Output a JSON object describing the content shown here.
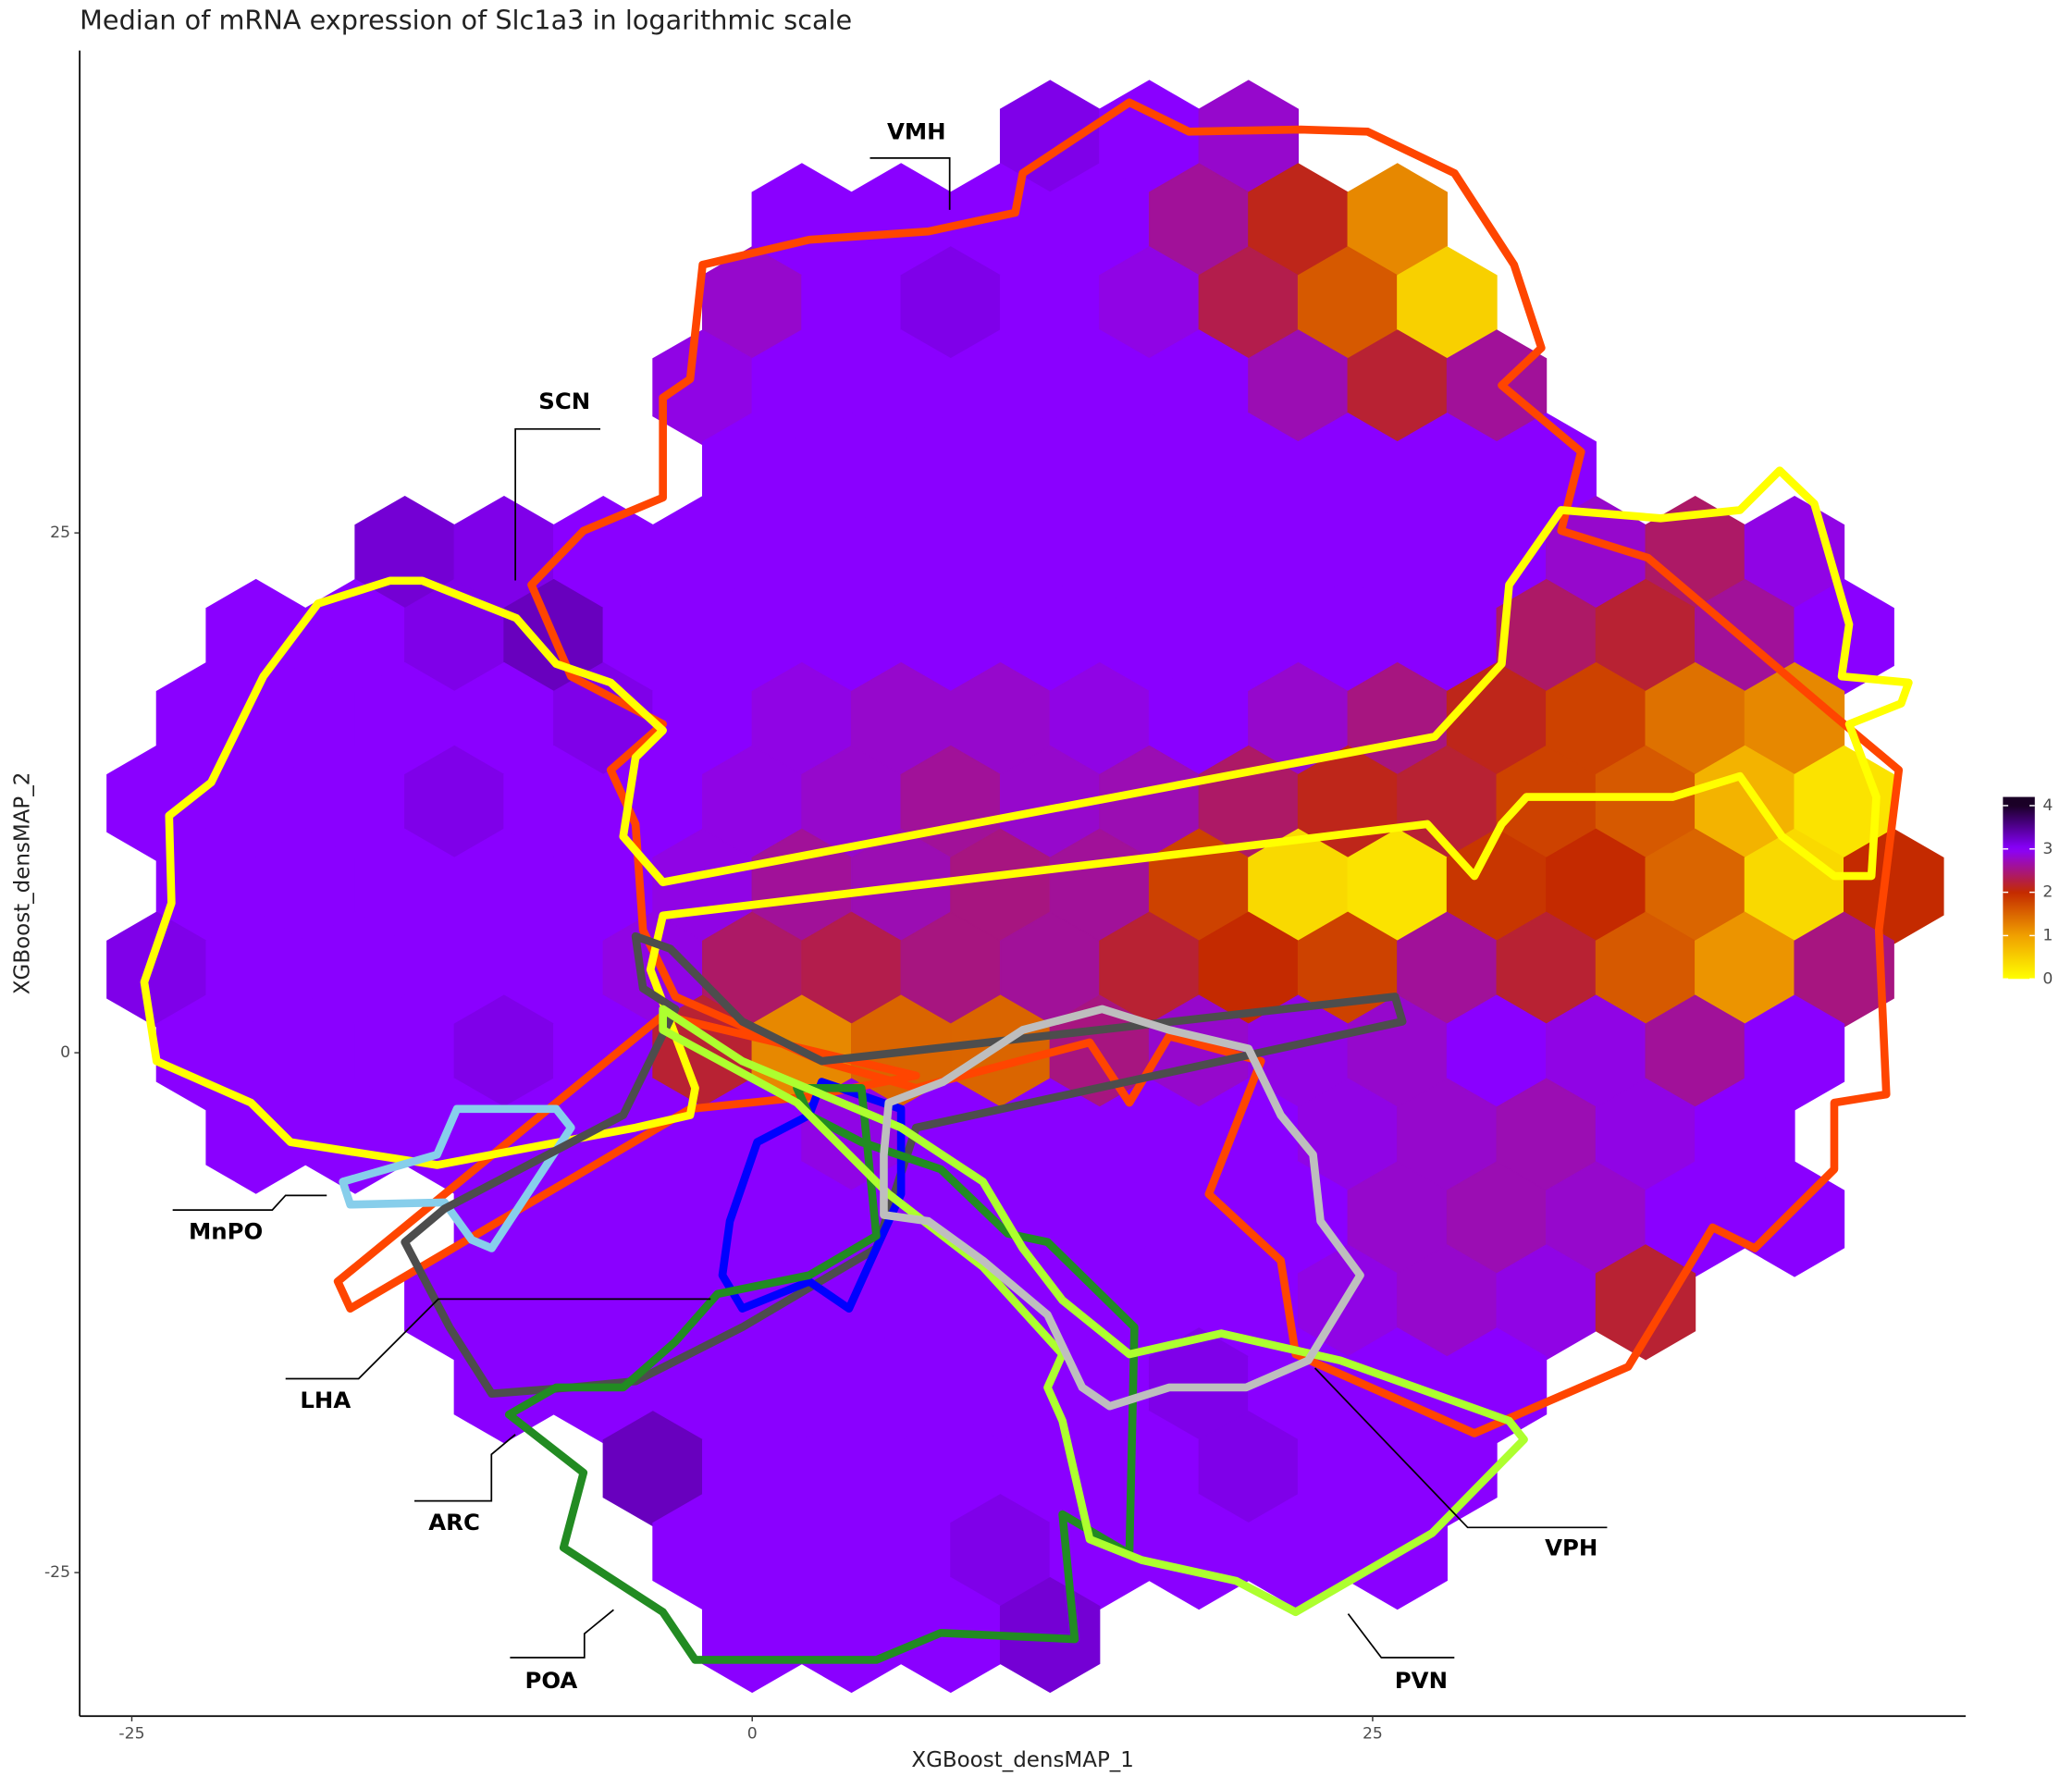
{
  "chart_data": {
    "type": "hexbin",
    "title": "Median of mRNA expression of Slc1a3 in logarithmic scale",
    "x_label": "XGBoost_densMAP_1",
    "y_label": "XGBoost_densMAP_2",
    "xlim": [
      -27.1,
      48.9
    ],
    "ylim": [
      -31.9,
      48.2
    ],
    "xticks": [
      -25,
      0,
      25
    ],
    "yticks": [
      -25,
      0,
      25
    ],
    "grid": false,
    "colorscale": [
      "#ffff00",
      "#f0a000",
      "#c42a00",
      "#8a00ff",
      "#1a0026"
    ],
    "colorbar": {
      "lim": [
        0,
        4.2
      ],
      "ticks": [
        0,
        1,
        2,
        3,
        4
      ],
      "position": "right"
    },
    "hexbins": [
      {
        "y": 44,
        "x": [
          12,
          16,
          20
        ],
        "values": [
          3.1,
          3,
          2.8
        ]
      },
      {
        "y": 40,
        "x": [
          2,
          6,
          10,
          14,
          18,
          22,
          26
        ],
        "values": [
          3,
          3,
          3,
          3,
          2.6,
          2.1,
          1.2
        ]
      },
      {
        "y": 36,
        "x": [
          0,
          4,
          8,
          12,
          16,
          20,
          24,
          28
        ],
        "values": [
          2.8,
          3,
          3.1,
          3,
          2.9,
          2.3,
          1.6,
          0.5
        ]
      },
      {
        "y": 32,
        "x": [
          -2,
          2,
          6,
          10,
          14,
          18,
          22,
          26,
          30
        ],
        "values": [
          2.9,
          3,
          3,
          3,
          3,
          3,
          2.7,
          2.2,
          2.6
        ]
      },
      {
        "y": 28,
        "x": [
          0,
          4,
          8,
          12,
          16,
          20,
          24,
          28,
          32
        ],
        "values": [
          3,
          3,
          3,
          3,
          3,
          3,
          3,
          3,
          3
        ]
      },
      {
        "y": 24,
        "x": [
          -14,
          -10,
          -6,
          -2,
          2,
          6,
          10,
          14,
          18,
          22,
          26,
          30,
          34,
          38,
          42
        ],
        "values": [
          3.2,
          3.1,
          3,
          3,
          3,
          3,
          3,
          3,
          3,
          3,
          3,
          3,
          2.8,
          2.4,
          2.9
        ]
      },
      {
        "y": 20,
        "x": [
          -20,
          -16,
          -12,
          -8,
          -4,
          0,
          4,
          8,
          12,
          16,
          20,
          24,
          28,
          32,
          36,
          40,
          44
        ],
        "values": [
          3,
          3,
          3.1,
          3.3,
          3,
          3,
          3,
          3,
          3,
          3,
          3,
          3,
          3,
          2.4,
          2.2,
          2.6,
          3
        ]
      },
      {
        "y": 16,
        "x": [
          -22,
          -18,
          -14,
          -10,
          -6,
          -2,
          2,
          6,
          10,
          14,
          18,
          22,
          26,
          30,
          34,
          38,
          42
        ],
        "values": [
          3,
          3,
          3,
          3,
          3.1,
          3,
          2.9,
          2.8,
          2.8,
          2.9,
          3,
          2.8,
          2.5,
          2.1,
          1.8,
          1.4,
          1.2
        ]
      },
      {
        "y": 12,
        "x": [
          -24,
          -20,
          -16,
          -12,
          -8,
          -4,
          0,
          4,
          8,
          12,
          16,
          20,
          24,
          28,
          32,
          36,
          40,
          44
        ],
        "values": [
          3,
          3,
          3,
          3.1,
          3,
          3,
          2.9,
          2.8,
          2.6,
          2.8,
          2.7,
          2.4,
          2.1,
          2.2,
          1.8,
          1.6,
          0.8,
          0.3
        ]
      },
      {
        "y": 8,
        "x": [
          -22,
          -18,
          -14,
          -10,
          -6,
          -2,
          2,
          6,
          10,
          14,
          18,
          22,
          26,
          30,
          34,
          38,
          42,
          46
        ],
        "values": [
          3,
          3,
          3,
          3,
          3,
          2.9,
          2.6,
          2.7,
          2.5,
          2.6,
          1.8,
          0.4,
          0.3,
          1.9,
          2,
          1.5,
          0.4,
          2
        ]
      },
      {
        "y": 4,
        "x": [
          -24,
          -20,
          -16,
          -12,
          -8,
          -4,
          0,
          4,
          8,
          12,
          16,
          20,
          24,
          28,
          32,
          36,
          40,
          44
        ],
        "values": [
          3.1,
          3,
          3,
          3,
          3,
          2.9,
          2.4,
          2.3,
          2.5,
          2.6,
          2.2,
          2,
          1.8,
          2.6,
          2.2,
          1.6,
          1.1,
          2.5
        ]
      },
      {
        "y": 0,
        "x": [
          -22,
          -18,
          -14,
          -10,
          -6,
          -2,
          2,
          6,
          10,
          14,
          18,
          22,
          26,
          30,
          34,
          38,
          42
        ],
        "values": [
          3,
          3,
          3,
          3.1,
          3,
          2.2,
          1.2,
          1.5,
          1.5,
          2.5,
          2.8,
          2.9,
          2.8,
          3,
          2.9,
          2.6,
          3
        ]
      },
      {
        "y": -4,
        "x": [
          -20,
          -16,
          -12,
          -8,
          -4,
          0,
          4,
          8,
          12,
          16,
          20,
          24,
          28,
          32,
          36,
          40
        ],
        "values": [
          3,
          3,
          3,
          3,
          3,
          3,
          2.9,
          3,
          3,
          3,
          3,
          2.9,
          2.8,
          2.7,
          2.9,
          3
        ]
      },
      {
        "y": -8,
        "x": [
          -10,
          -6,
          -2,
          2,
          6,
          10,
          14,
          18,
          22,
          26,
          30,
          34,
          38,
          42
        ],
        "values": [
          3,
          3,
          3,
          3,
          3,
          3,
          3,
          3,
          3,
          2.8,
          2.7,
          2.8,
          3,
          3
        ]
      },
      {
        "y": -12,
        "x": [
          -12,
          -8,
          -4,
          0,
          4,
          8,
          12,
          16,
          20,
          24,
          28,
          32,
          36
        ],
        "values": [
          3,
          3,
          3,
          3,
          3,
          3,
          3,
          3,
          3,
          2.9,
          2.8,
          2.9,
          2.2
        ]
      },
      {
        "y": -16,
        "x": [
          -10,
          -6,
          -2,
          2,
          6,
          10,
          14,
          18,
          22,
          26,
          30
        ],
        "values": [
          3,
          3,
          3,
          3,
          3,
          3,
          3,
          3.1,
          3,
          3,
          3
        ]
      },
      {
        "y": -20,
        "x": [
          -4,
          0,
          4,
          8,
          12,
          16,
          20,
          24,
          28
        ],
        "values": [
          3.3,
          3,
          3,
          3,
          3,
          3,
          3.1,
          3,
          3
        ]
      },
      {
        "y": -24,
        "x": [
          -2,
          2,
          6,
          10,
          14,
          18,
          22,
          26
        ],
        "values": [
          3,
          3,
          3,
          3.1,
          3,
          3,
          3,
          3
        ]
      },
      {
        "y": -28,
        "x": [
          0,
          4,
          8,
          12
        ],
        "values": [
          3,
          3,
          3,
          3.2
        ]
      }
    ],
    "regions": [
      {
        "name": "VMH",
        "color": "#ff4500",
        "x": [
          10.9,
          15.2,
          17.6,
          22.1,
          24.8,
          28.3,
          30.7,
          31.8,
          30.2,
          33.4,
          32.6,
          36.1,
          43.6,
          46.2,
          45.4,
          45.7,
          43.6,
          43.6,
          40.4,
          38.7,
          35.3,
          29.1,
          21.9,
          21.3,
          18.4,
          20.5,
          16.8,
          15.2,
          13.6,
          6.6,
          2.8,
          -3.1,
          -4.4,
          -4.7,
          -5.7,
          -3.6,
          -7.3,
          -8.9,
          -6.8,
          -3.6,
          -3.6,
          -2.5,
          -2.0,
          2.3,
          7.1,
          10.6,
          null,
          -3.6,
          -16.7,
          -16.2,
          -2.5,
          2.3,
          6.6
        ],
        "y": [
          42.3,
          45.7,
          44.3,
          44.4,
          44.3,
          42.3,
          37.9,
          33.9,
          32.1,
          28.9,
          25.1,
          23.8,
          16.2,
          13.6,
          5.9,
          -2.0,
          -2.4,
          -5.6,
          -9.4,
          -8.4,
          -15.1,
          -18.3,
          -14.5,
          -10.0,
          -6.8,
          -0.4,
          0.8,
          -2.4,
          0.5,
          -1.7,
          -0.4,
          2.7,
          5.9,
          11.0,
          13.6,
          15.8,
          18.1,
          22.5,
          25.1,
          26.7,
          31.5,
          32.4,
          37.9,
          39.1,
          39.5,
          40.4,
          null,
          1.8,
          -11.0,
          -12.3,
          -2.7,
          -2.1,
          -1.1
        ]
      },
      {
        "name": "SCN",
        "color": "#ffff00",
        "x": [
          -17.5,
          -14.6,
          -13.3,
          -9.5,
          -7.9,
          -5.7,
          -3.6,
          -4.7,
          -5.2,
          -3.6,
          27.5,
          30.2,
          30.5,
          32.6,
          36.6,
          39.8,
          41.4,
          42.8,
          44.2,
          43.9,
          46.6,
          46.3,
          44.2,
          45.3,
          45.1,
          43.6,
          41.5,
          39.8,
          37.1,
          31.2,
          30.2,
          29.1,
          27.2,
          21.0,
          -3.6,
          -4.1,
          -2.3,
          -2.5,
          -4.7,
          -12.7,
          -18.6,
          -20.2,
          -24.0,
          -24.5,
          -23.4,
          -23.5,
          -21.8,
          -19.7
        ],
        "y": [
          21.6,
          22.7,
          22.7,
          20.9,
          18.7,
          17.8,
          15.5,
          14.2,
          10.4,
          8.2,
          15.2,
          18.7,
          22.5,
          26.1,
          25.7,
          26.1,
          28.0,
          26.4,
          20.6,
          18.1,
          17.8,
          16.8,
          15.8,
          12.3,
          8.5,
          8.5,
          10.4,
          13.3,
          12.3,
          12.3,
          11.0,
          8.5,
          11.0,
          10.1,
          6.6,
          4.0,
          -1.7,
          -3.0,
          -3.6,
          -5.4,
          -4.3,
          -2.4,
          -0.4,
          3.4,
          7.2,
          11.4,
          13.0,
          18.1
        ]
      },
      {
        "name": "MnPO",
        "color": "#87ceeb",
        "x": [
          -16.5,
          -12.7,
          -11.9,
          -7.9,
          -7.3,
          -10.5,
          -11.3,
          -12.4,
          -16.2
        ],
        "y": [
          -6.2,
          -4.9,
          -2.7,
          -2.7,
          -3.6,
          -9.4,
          -9.0,
          -7.2,
          -7.3
        ]
      },
      {
        "name": "LHA",
        "color": "#4d4d4d",
        "x": [
          -4.7,
          -3.3,
          -0.4,
          2.8,
          25.9,
          26.2,
          6.6,
          5.0,
          -0.4,
          -4.7,
          -7.3,
          -10.5,
          -12.2,
          -14.0,
          -12.4,
          -5.2,
          -3.1,
          -4.4
        ],
        "y": [
          5.6,
          5.0,
          1.5,
          -0.4,
          2.7,
          1.5,
          -3.6,
          -9.4,
          -13.2,
          -15.8,
          -16.1,
          -16.4,
          -13.2,
          -9.1,
          -7.5,
          -3.0,
          2.1,
          3.1
        ]
      },
      {
        "name": "ARC",
        "color": "#0000ff",
        "x": [
          2.8,
          6.0,
          6.0,
          5.0,
          3.9,
          2.3,
          -0.4,
          -1.2,
          -0.9,
          0.2,
          2.3
        ],
        "y": [
          -1.4,
          -2.7,
          -6.8,
          -9.4,
          -12.3,
          -11.0,
          -12.3,
          -10.7,
          -8.1,
          -4.3,
          -3.0
        ]
      },
      {
        "name": "POA",
        "color": "#228b22",
        "x": [
          1.8,
          4.4,
          5.0,
          2.3,
          -1.4,
          -3.1,
          -5.2,
          -7.9,
          -9.8,
          -6.8,
          -7.6,
          -3.6,
          -2.3,
          5.0,
          7.6,
          13.0,
          12.5,
          15.2,
          15.4,
          11.9,
          10.3,
          7.6,
          4.4,
          2.3
        ],
        "y": [
          -1.7,
          -1.7,
          -8.8,
          -10.7,
          -11.6,
          -13.9,
          -16.1,
          -16.1,
          -17.4,
          -20.2,
          -23.8,
          -26.9,
          -29.2,
          -29.2,
          -27.9,
          -28.2,
          -22.2,
          -24.1,
          -13.2,
          -9.1,
          -8.7,
          -5.6,
          -4.3,
          -3.0
        ]
      },
      {
        "name": "PVN",
        "color": "#adff2f",
        "x": [
          -3.6,
          -0.4,
          6.0,
          9.3,
          10.9,
          12.5,
          15.2,
          18.9,
          23.7,
          30.5,
          31.1,
          27.4,
          21.9,
          19.5,
          15.7,
          13.6,
          12.5,
          11.9,
          12.5,
          9.3,
          5.5,
          1.8,
          -3.6
        ],
        "y": [
          2.1,
          -0.4,
          -3.6,
          -6.2,
          -9.4,
          -11.9,
          -14.5,
          -13.5,
          -14.8,
          -17.7,
          -18.6,
          -23.1,
          -26.9,
          -25.4,
          -24.4,
          -23.4,
          -17.7,
          -16.1,
          -14.5,
          -10.3,
          -6.8,
          -2.4,
          1.1
        ]
      },
      {
        "name": "VPH",
        "color": "#bebebe",
        "x": [
          5.5,
          7.7,
          10.9,
          14.1,
          16.8,
          20.0,
          21.3,
          22.6,
          22.9,
          24.5,
          22.4,
          19.9,
          16.8,
          14.4,
          13.3,
          11.9,
          9.3,
          7.1,
          5.3,
          5.3
        ],
        "y": [
          -2.4,
          -1.4,
          1.1,
          2.1,
          1.1,
          0.2,
          -3.0,
          -4.9,
          -8.1,
          -10.7,
          -14.8,
          -16.1,
          -16.1,
          -17.0,
          -16.1,
          -12.6,
          -10.0,
          -8.1,
          -7.8,
          -4.9
        ]
      }
    ]
  }
}
